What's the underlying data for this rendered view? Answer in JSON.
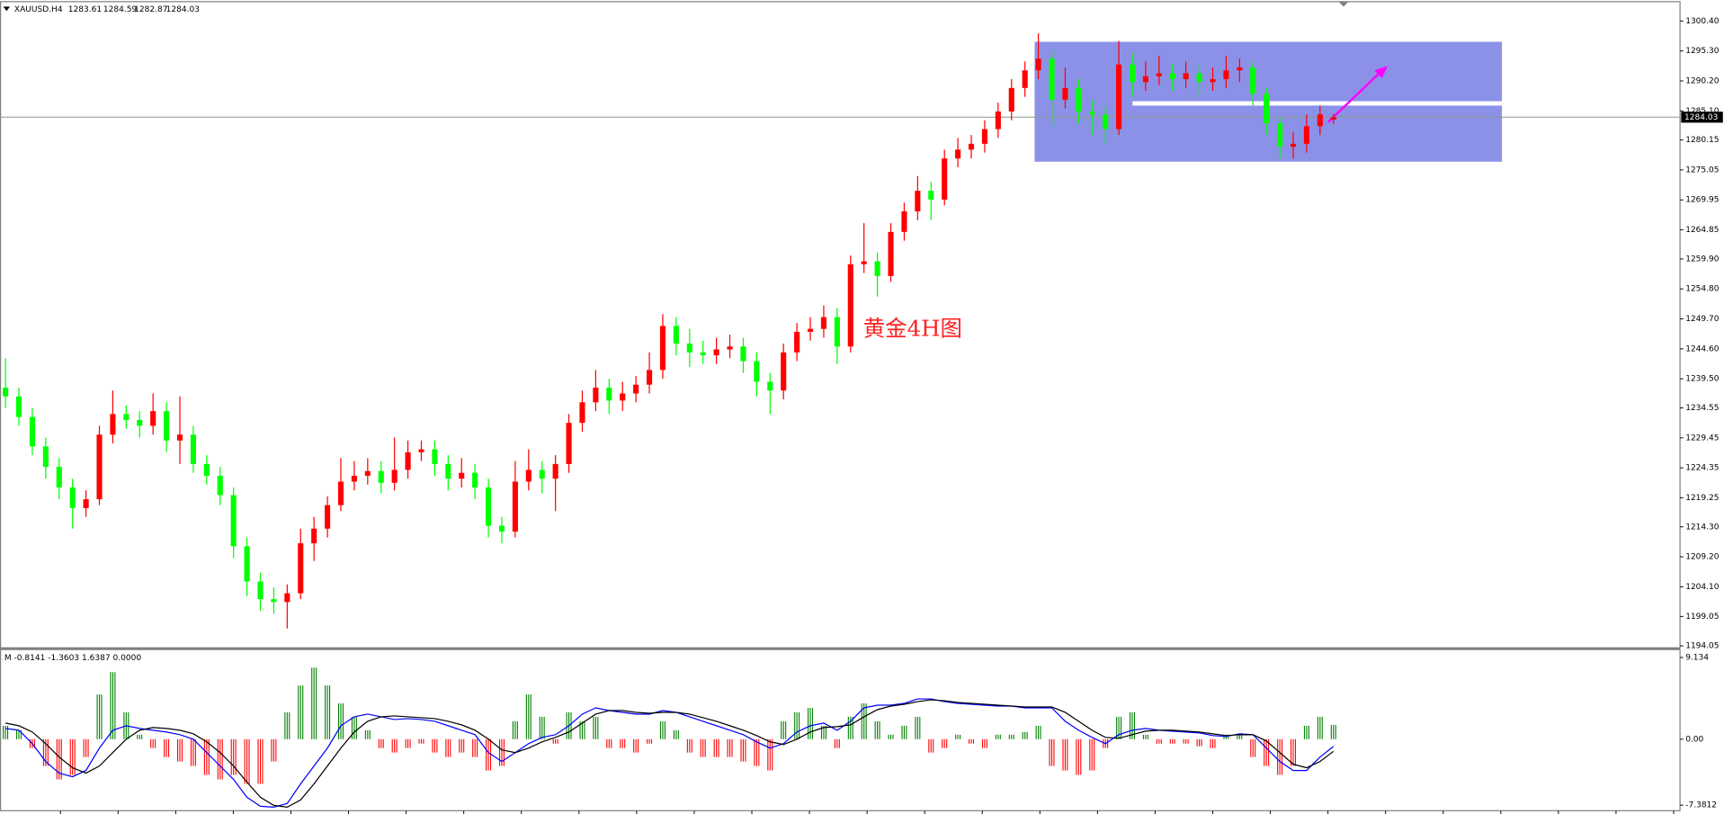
{
  "chart_data": [
    {
      "type": "candlestick",
      "symbol": "XAUUSD.H4",
      "annotation": "黄金4H图",
      "up_color": "#ff0000",
      "down_color": "#00ff00",
      "price_line_color": "#8a9a8a",
      "ylim": [
        1193.7,
        1303.6
      ],
      "yticks": [
        {
          "value": 1300.4,
          "label": "1300.40"
        },
        {
          "value": 1295.3,
          "label": "1295.30"
        },
        {
          "value": 1290.2,
          "label": "1290.20"
        },
        {
          "value": 1285.1,
          "label": "1285.10"
        },
        1280.15,
        1275.05,
        1269.95,
        1264.85,
        {
          "value": 1259.9,
          "label": "1259.90"
        },
        {
          "value": 1254.8,
          "label": "1254.80"
        },
        {
          "value": 1249.7,
          "label": "1249.70"
        },
        {
          "value": 1244.6,
          "label": "1244.60"
        },
        {
          "value": 1239.5,
          "label": "1239.50"
        },
        1234.55,
        1229.45,
        1224.35,
        1219.25,
        {
          "value": 1214.3,
          "label": "1214.30"
        },
        {
          "value": 1209.2,
          "label": "1209.20"
        },
        {
          "value": 1204.1,
          "label": "1204.10"
        },
        1199.05,
        1194.05
      ],
      "open": [
        1238,
        1236.5,
        1233,
        1228,
        1224.5,
        1221,
        1217.5,
        1219,
        1230,
        1233.5,
        1232.5,
        1231.5,
        1234,
        1229,
        1230,
        1225,
        1223,
        1219.7,
        1211,
        1205,
        1202,
        1201.5,
        1203,
        1211.5,
        1214,
        1218,
        1222,
        1223,
        1223.8,
        1221.8,
        1224,
        1227,
        1227.5,
        1225,
        1222.5,
        1223.5,
        1221,
        1214.5,
        1213.5,
        1222,
        1224,
        1222.5,
        1225,
        1232,
        1235.5,
        1238,
        1235.8,
        1237,
        1238.5,
        1241,
        1248.5,
        1245.5,
        1244,
        1243.5,
        1244.5,
        1245,
        1242.5,
        1239,
        1237.5,
        1244,
        1247.5,
        1248,
        1250,
        1245,
        1259,
        1259.5,
        1257,
        1264.5,
        1268,
        1271.5,
        1270,
        1277,
        1278.5,
        1279.5,
        1282,
        1285,
        1289,
        1292,
        1294,
        1287,
        1289,
        1285,
        1284.5,
        1282,
        1293,
        1290,
        1291,
        1291.5,
        1290.5,
        1291.5,
        1290,
        1290.5,
        1292,
        1292.5,
        1288,
        1283,
        1279,
        1279.5,
        1282.5,
        1283.61
      ],
      "high": [
        1243,
        1238,
        1234.5,
        1229.5,
        1226,
        1222.5,
        1220.5,
        1231.5,
        1237.5,
        1235,
        1234,
        1237,
        1235.5,
        1236.5,
        1231.5,
        1226.5,
        1224.5,
        1221,
        1212.5,
        1206.5,
        1204,
        1204.5,
        1214,
        1216,
        1219.5,
        1226,
        1225.5,
        1226,
        1225.5,
        1229.5,
        1229,
        1229,
        1229,
        1226.5,
        1226,
        1225,
        1222.5,
        1216,
        1225.5,
        1227.5,
        1225.5,
        1226.5,
        1233.5,
        1237.5,
        1241,
        1239.5,
        1239,
        1240,
        1244,
        1250.5,
        1250,
        1248,
        1246,
        1246.5,
        1247,
        1246.5,
        1244,
        1240.5,
        1245.5,
        1249,
        1250,
        1252,
        1251.5,
        1260.5,
        1266,
        1261,
        1266,
        1269.5,
        1274,
        1273,
        1278.5,
        1280.5,
        1281,
        1283.5,
        1286.5,
        1290.5,
        1293.5,
        1298.3,
        1295.5,
        1292.5,
        1290.5,
        1287,
        1286,
        1297,
        1295,
        1293.5,
        1294.5,
        1293,
        1293.5,
        1293,
        1292.5,
        1294.5,
        1294,
        1293.5,
        1289,
        1284,
        1281.5,
        1284.5,
        1286,
        1284.59
      ],
      "low": [
        1234.5,
        1231.5,
        1226.5,
        1222.5,
        1219,
        1214,
        1216,
        1218,
        1228.5,
        1231,
        1229.5,
        1230,
        1227,
        1225,
        1223.5,
        1221.5,
        1218,
        1209,
        1202.5,
        1200,
        1199.5,
        1197,
        1202,
        1208.5,
        1212.5,
        1217,
        1220.5,
        1221.5,
        1220,
        1220.5,
        1222.5,
        1225.5,
        1223,
        1220.5,
        1221,
        1219,
        1212.5,
        1211.5,
        1212.5,
        1220.5,
        1220,
        1217,
        1223.5,
        1230.5,
        1234,
        1233.5,
        1234,
        1235.5,
        1237,
        1239.5,
        1243.5,
        1241.5,
        1242,
        1242,
        1243,
        1240.5,
        1236.5,
        1233.5,
        1236,
        1242.5,
        1246,
        1246.5,
        1242,
        1244,
        1257.5,
        1253.5,
        1256,
        1263,
        1266.5,
        1266.5,
        1269,
        1275.5,
        1277,
        1278,
        1280.5,
        1283.5,
        1287.5,
        1290.5,
        1282.5,
        1285.5,
        1283,
        1281,
        1279.5,
        1281,
        1287.5,
        1288.5,
        1289.5,
        1288.5,
        1289,
        1287.5,
        1288.5,
        1289,
        1290,
        1286,
        1281,
        1277,
        1277,
        1278,
        1281,
        1282.87
      ],
      "close": [
        1236.5,
        1233,
        1228,
        1224.5,
        1221,
        1217.5,
        1219,
        1230,
        1233.5,
        1232.5,
        1231.5,
        1234,
        1229,
        1230,
        1225,
        1223,
        1219.7,
        1211,
        1205,
        1202,
        1201.5,
        1203,
        1211.5,
        1214,
        1218,
        1222,
        1223,
        1223.8,
        1221.8,
        1224,
        1227,
        1227.5,
        1225,
        1222.5,
        1223.5,
        1221,
        1214.5,
        1213.5,
        1222,
        1224,
        1222.5,
        1225,
        1232,
        1235.5,
        1238,
        1235.8,
        1237,
        1238.5,
        1241,
        1248.5,
        1245.5,
        1244,
        1243.5,
        1244.5,
        1245,
        1242.5,
        1239,
        1237.5,
        1244,
        1247.5,
        1248,
        1250,
        1245,
        1259,
        1259.5,
        1257,
        1264.5,
        1268,
        1271.5,
        1270,
        1277,
        1278.5,
        1279.5,
        1282,
        1285,
        1289,
        1292,
        1294,
        1287,
        1289,
        1285,
        1284.5,
        1282,
        1293,
        1290,
        1291,
        1291.5,
        1290.5,
        1291.5,
        1290,
        1290.5,
        1292,
        1292.5,
        1288,
        1283,
        1279,
        1279.5,
        1282.5,
        1284.5,
        1284.03
      ]
    },
    {
      "type": "macd",
      "label": "M -0.8141 -1.3603 1.6387 0.0000",
      "ylim": [
        -8,
        9.96
      ],
      "yticks": [
        9.134,
        {
          "value": 0,
          "label": "0.00"
        },
        -7.3812
      ],
      "histogram": {
        "up_color": "#008000",
        "down_color": "#ff0000",
        "values": [
          1.5,
          1,
          -1,
          -3,
          -4.5,
          -4,
          -2,
          5,
          7.5,
          3,
          0.5,
          -1,
          -2,
          -2.5,
          -3,
          -4,
          -4.5,
          -4,
          -5,
          -5,
          -2.5,
          3,
          6,
          8,
          6,
          4,
          2.5,
          1,
          -1,
          -1.5,
          -1,
          -0.5,
          -1.5,
          -2,
          -1.5,
          -2,
          -3.5,
          -3,
          2,
          5,
          2.5,
          -0.5,
          3,
          2,
          2.5,
          -1,
          -1,
          -1.5,
          -0.5,
          2,
          1,
          -1.5,
          -2,
          -2,
          -2,
          -2.5,
          -3,
          -3.5,
          2,
          3,
          3.5,
          1.5,
          -1,
          2.5,
          4,
          2,
          0.5,
          1.5,
          2.5,
          -1.5,
          -1,
          0.5,
          -0.5,
          -1,
          0.5,
          0.5,
          0.8,
          1.5,
          -3,
          -3.5,
          -4,
          -3.5,
          -1,
          2.5,
          3,
          0.5,
          -0.5,
          -0.5,
          -0.5,
          -0.8,
          -1,
          0.5,
          0.5,
          -2,
          -3,
          -4,
          -3,
          1.5,
          2.5,
          1.6
        ]
      },
      "series": [
        {
          "color": "#0000ff",
          "values": [
            1.2,
            1.0,
            -0.5,
            -2.5,
            -3.8,
            -4.2,
            -3.5,
            -1.0,
            1.0,
            1.5,
            1.2,
            1.0,
            0.8,
            0.5,
            0.0,
            -1.5,
            -3.0,
            -4.5,
            -6.5,
            -7.5,
            -7.6,
            -7.2,
            -5.0,
            -3.0,
            -1.0,
            1.5,
            2.5,
            2.8,
            2.5,
            2.2,
            2.3,
            2.2,
            2.0,
            1.5,
            1.0,
            0.5,
            -1.5,
            -2.5,
            -1.5,
            -0.5,
            0.2,
            0.5,
            1.5,
            2.8,
            3.5,
            3.2,
            3.0,
            2.8,
            2.8,
            3.2,
            3.0,
            2.5,
            2.0,
            1.5,
            1.0,
            0.5,
            -0.3,
            -1.0,
            -0.5,
            0.8,
            1.5,
            1.8,
            1.0,
            2.0,
            3.5,
            3.8,
            3.8,
            4.0,
            4.5,
            4.5,
            4.2,
            4.0,
            3.9,
            3.8,
            3.7,
            3.7,
            3.5,
            3.5,
            3.5,
            2.0,
            1.0,
            0.2,
            -0.5,
            0.5,
            1.0,
            1.2,
            1.0,
            0.9,
            0.8,
            0.7,
            0.4,
            0.3,
            0.6,
            0.5,
            -1.0,
            -2.5,
            -3.5,
            -3.5,
            -2.0,
            -0.8141
          ]
        },
        {
          "color": "#000000",
          "values": [
            1.8,
            1.5,
            0.8,
            -0.5,
            -2.0,
            -3.2,
            -3.8,
            -3.0,
            -1.5,
            0.0,
            1.0,
            1.3,
            1.2,
            1.0,
            0.6,
            -0.3,
            -1.5,
            -3.0,
            -4.8,
            -6.5,
            -7.4,
            -7.6,
            -6.8,
            -5.0,
            -3.0,
            -1.0,
            0.8,
            2.0,
            2.5,
            2.6,
            2.5,
            2.4,
            2.3,
            2.0,
            1.6,
            1.0,
            0.0,
            -1.2,
            -1.5,
            -1.0,
            -0.3,
            0.2,
            0.8,
            1.8,
            2.8,
            3.2,
            3.2,
            3.0,
            2.9,
            3.0,
            3.0,
            2.8,
            2.4,
            2.0,
            1.5,
            1.0,
            0.4,
            -0.3,
            -0.6,
            0.0,
            0.8,
            1.3,
            1.4,
            1.6,
            2.5,
            3.3,
            3.7,
            3.9,
            4.2,
            4.4,
            4.3,
            4.1,
            4.0,
            3.9,
            3.8,
            3.7,
            3.6,
            3.6,
            3.6,
            3.0,
            2.0,
            1.0,
            0.2,
            0.1,
            0.5,
            0.9,
            1.0,
            1.0,
            0.9,
            0.8,
            0.6,
            0.4,
            0.5,
            0.5,
            -0.2,
            -1.5,
            -2.8,
            -3.2,
            -2.5,
            -1.3603
          ]
        }
      ]
    }
  ]
}
